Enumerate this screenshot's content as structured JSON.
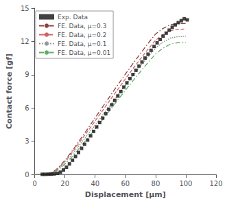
{
  "chart_data": {
    "type": "line",
    "xlabel": "Displacement [μm]",
    "ylabel": "Contact force [gf]",
    "xlim": [
      0,
      120
    ],
    "ylim": [
      0,
      15
    ],
    "xticks": [
      0,
      20,
      40,
      60,
      80,
      100,
      120
    ],
    "yticks": [
      0,
      3,
      6,
      9,
      12,
      15
    ],
    "grid": false,
    "legend": "upper left",
    "series": [
      {
        "name": "FE. Data, μ=0.3",
        "type": "line",
        "color": "#8B4040",
        "line_style": "dashdot",
        "x": [
          0,
          2,
          4,
          6,
          8,
          10,
          12,
          14,
          16,
          18,
          20,
          22,
          24,
          26,
          28,
          30,
          35,
          40,
          45,
          50,
          55,
          60,
          65,
          70,
          75,
          80,
          85,
          90,
          95,
          100
        ],
        "values": [
          0,
          0.0,
          0.0,
          0.01,
          0.02,
          0.08,
          0.22,
          0.42,
          0.67,
          0.96,
          1.28,
          1.62,
          1.98,
          2.35,
          2.74,
          3.14,
          4.1,
          5.1,
          6.1,
          7.1,
          8.08,
          9.05,
          10.0,
          10.92,
          11.82,
          12.68,
          13.18,
          13.52,
          13.62,
          13.62
        ]
      },
      {
        "name": "FE. Data, μ=0.2",
        "type": "line",
        "color": "#CC6666",
        "line_style": "dashed",
        "x": [
          0,
          2,
          4,
          6,
          8,
          10,
          12,
          14,
          16,
          18,
          20,
          22,
          24,
          26,
          28,
          30,
          35,
          40,
          45,
          50,
          55,
          60,
          65,
          70,
          75,
          80,
          85,
          90,
          95,
          100
        ],
        "values": [
          0,
          0.0,
          0.0,
          0.01,
          0.02,
          0.07,
          0.2,
          0.38,
          0.62,
          0.89,
          1.2,
          1.52,
          1.86,
          2.22,
          2.58,
          2.96,
          3.88,
          4.82,
          5.78,
          6.74,
          7.68,
          8.62,
          9.54,
          10.44,
          11.3,
          12.12,
          12.62,
          12.98,
          13.1,
          13.12
        ]
      },
      {
        "name": "FE. Data, μ=0.1",
        "type": "line",
        "color": "#999999",
        "line_style": "dotted",
        "x": [
          0,
          2,
          4,
          6,
          8,
          10,
          12,
          14,
          16,
          18,
          20,
          22,
          24,
          26,
          28,
          30,
          35,
          40,
          45,
          50,
          55,
          60,
          65,
          70,
          75,
          80,
          85,
          90,
          95,
          100
        ],
        "values": [
          0,
          0.0,
          0.0,
          0.01,
          0.01,
          0.06,
          0.17,
          0.34,
          0.55,
          0.8,
          1.08,
          1.38,
          1.7,
          2.03,
          2.37,
          2.72,
          3.58,
          4.46,
          5.36,
          6.26,
          7.16,
          8.05,
          8.93,
          9.78,
          10.62,
          11.42,
          11.94,
          12.32,
          12.44,
          12.48
        ]
      },
      {
        "name": "FE. Data, μ=0.01",
        "type": "line",
        "color": "#66AA66",
        "line_style": "dashdot",
        "x": [
          0,
          2,
          4,
          6,
          8,
          10,
          12,
          14,
          16,
          18,
          20,
          22,
          24,
          26,
          28,
          30,
          35,
          40,
          45,
          50,
          55,
          60,
          65,
          70,
          75,
          80,
          85,
          90,
          95,
          100
        ],
        "values": [
          0,
          0.0,
          0.0,
          0.0,
          0.01,
          0.05,
          0.14,
          0.28,
          0.46,
          0.68,
          0.93,
          1.2,
          1.49,
          1.8,
          2.12,
          2.45,
          3.26,
          4.1,
          4.96,
          5.84,
          6.72,
          7.59,
          8.45,
          9.28,
          10.1,
          10.88,
          11.4,
          11.78,
          11.9,
          11.92
        ]
      },
      {
        "name": "Exp. Data",
        "type": "scatter",
        "color": "#111111",
        "marker": "square",
        "x": [
          5,
          7,
          9,
          11,
          13,
          15,
          17,
          19,
          21,
          23,
          25,
          27,
          29,
          31,
          33,
          35,
          37,
          39,
          41,
          43,
          45,
          47,
          49,
          51,
          53,
          55,
          57,
          59,
          61,
          63,
          65,
          67,
          69,
          71,
          73,
          75,
          77,
          79,
          81,
          83,
          85,
          87,
          89,
          91,
          93,
          95,
          97,
          99,
          101
        ],
        "values": [
          0.01,
          0.01,
          0.02,
          0.03,
          0.05,
          0.1,
          0.2,
          0.4,
          0.65,
          0.95,
          1.28,
          1.62,
          1.98,
          2.35,
          2.72,
          3.1,
          3.48,
          3.88,
          4.28,
          4.68,
          5.08,
          5.48,
          5.88,
          6.28,
          6.68,
          7.08,
          7.48,
          7.88,
          8.26,
          8.65,
          9.02,
          9.4,
          9.78,
          10.15,
          10.5,
          10.85,
          11.2,
          11.55,
          11.88,
          12.18,
          12.48,
          12.75,
          13.02,
          13.28,
          13.5,
          13.7,
          13.88,
          14.05,
          13.95
        ]
      }
    ]
  }
}
